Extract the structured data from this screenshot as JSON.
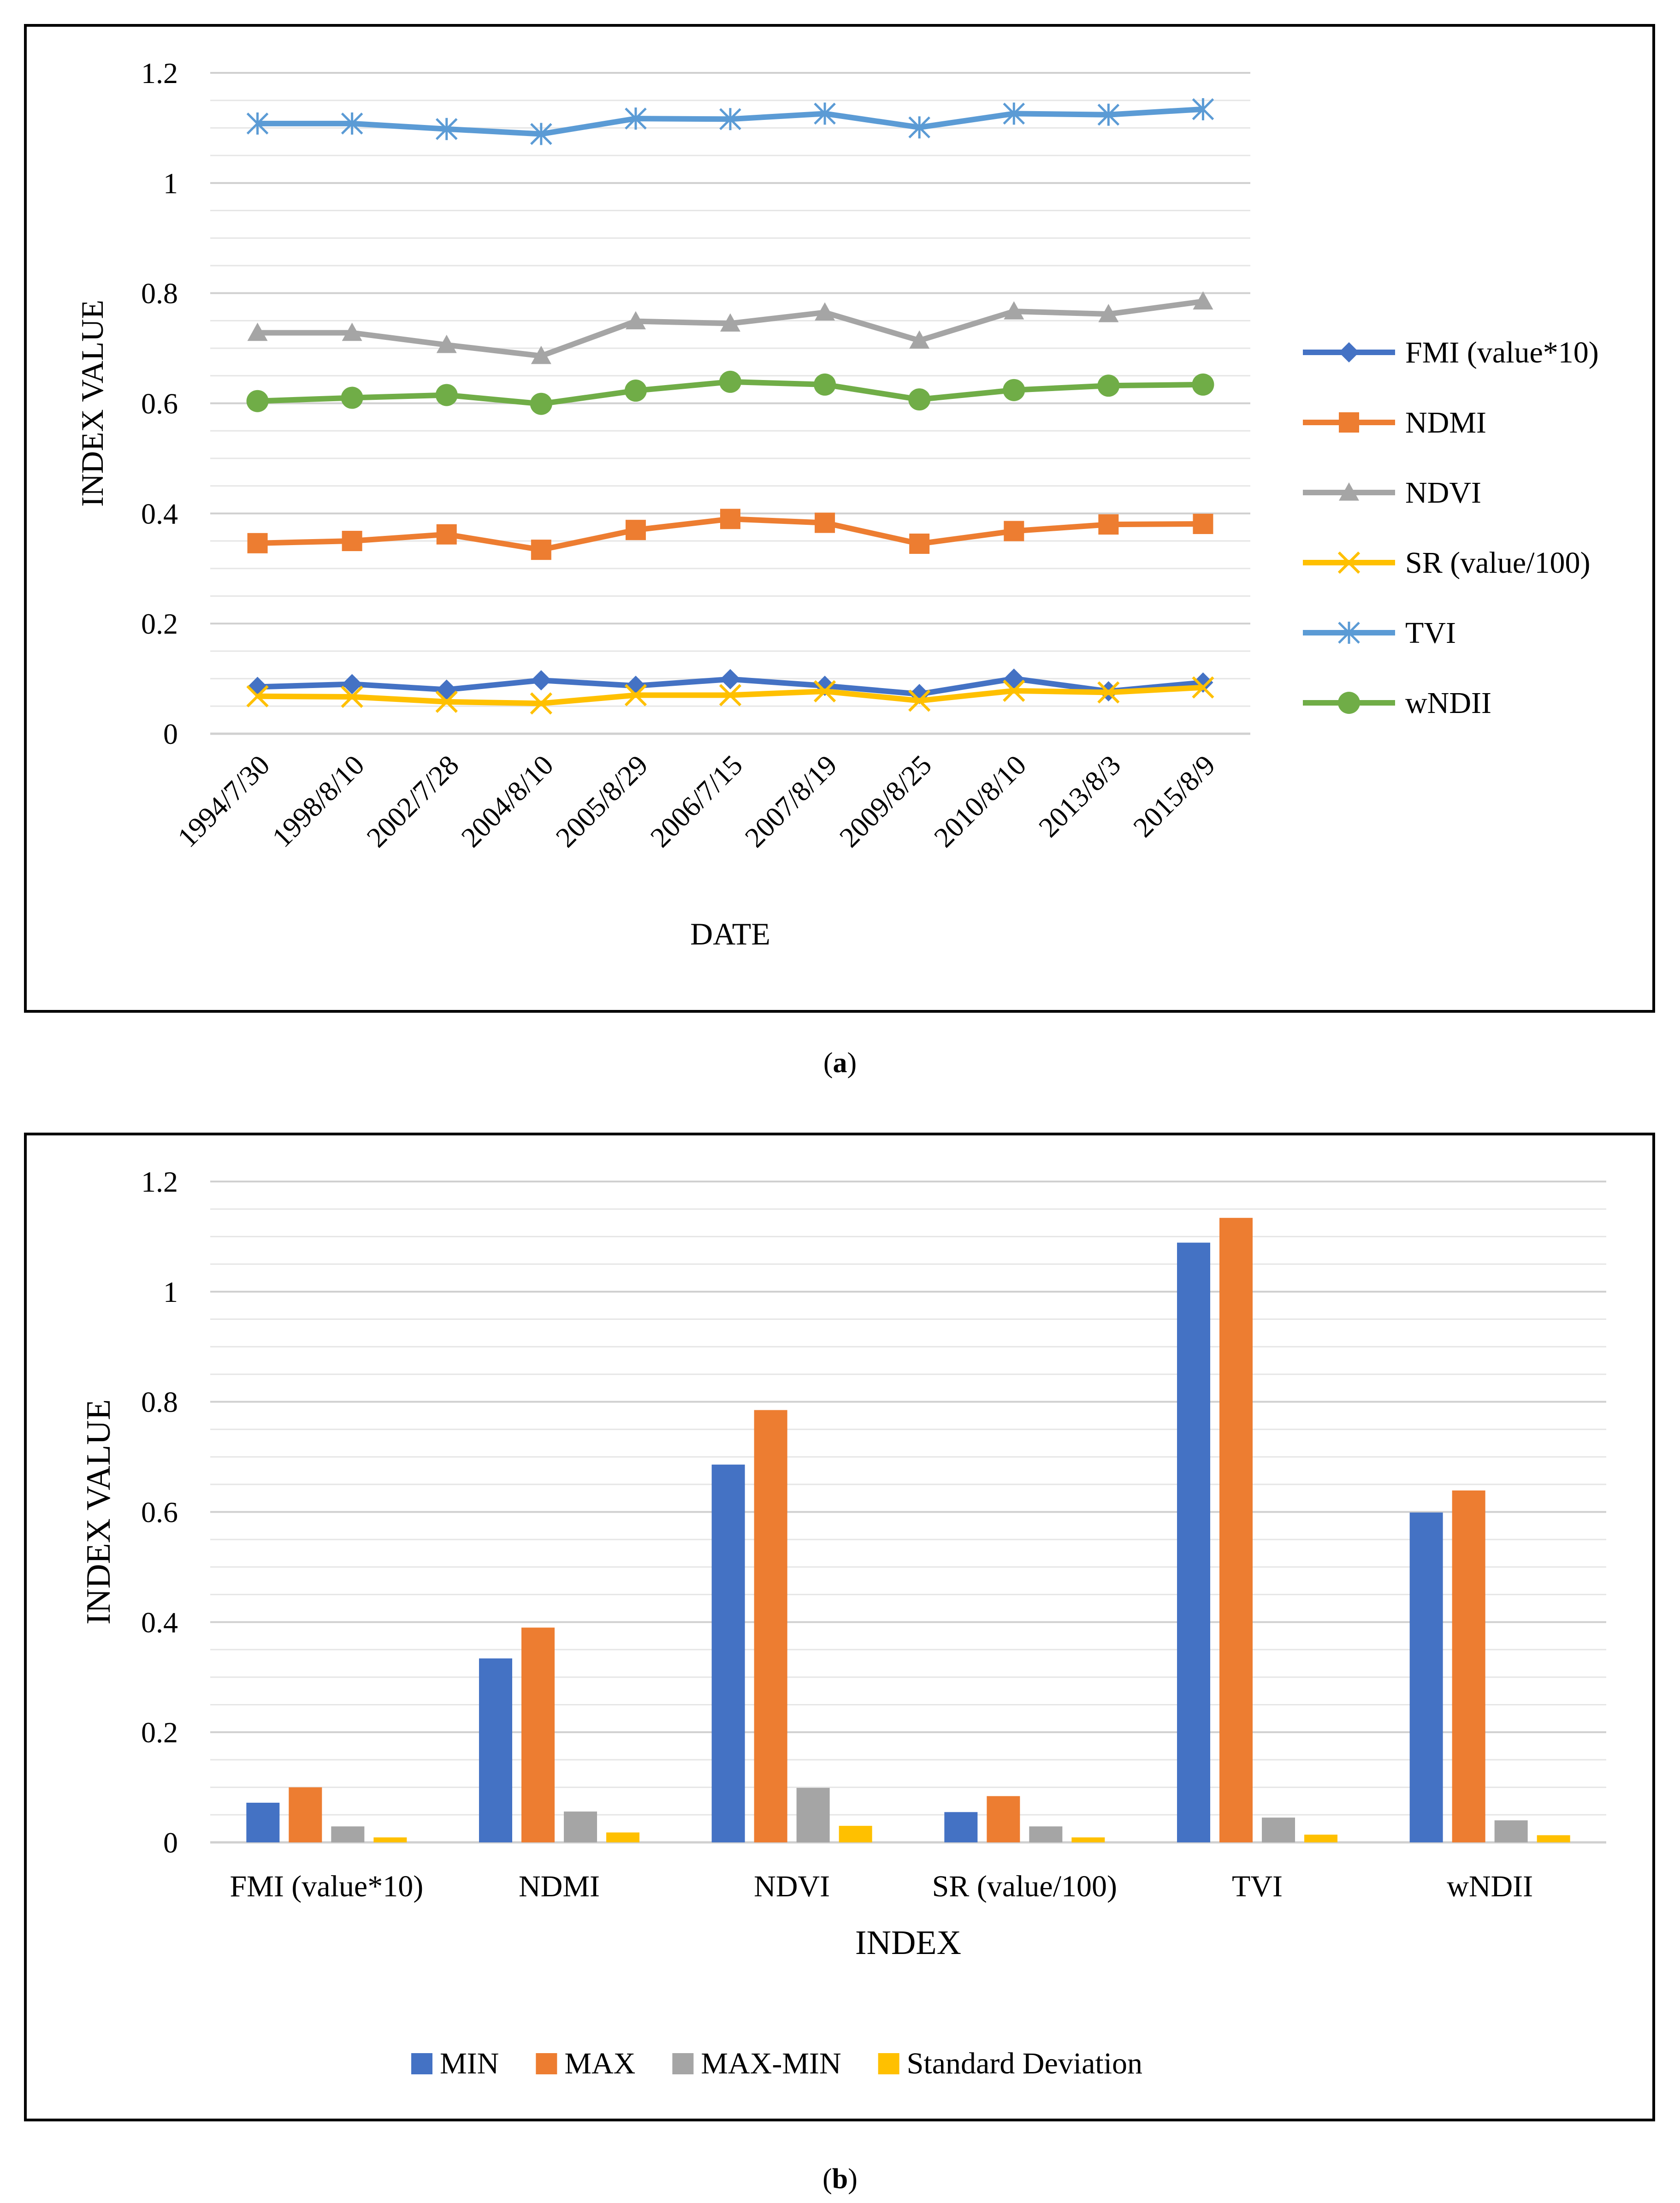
{
  "captions": {
    "a": "a",
    "b": "b"
  },
  "chart_data": [
    {
      "type": "line",
      "xlabel": "DATE",
      "ylabel": "INDEX VALUE",
      "ylim": [
        0,
        1.2
      ],
      "yticks": [
        "0",
        "0.2",
        "0.4",
        "0.6",
        "0.8",
        "1",
        "1.2"
      ],
      "grid": true,
      "legend": "right",
      "x": [
        "1994/7/30",
        "1998/8/10",
        "2002/7/28",
        "2004/8/10",
        "2005/8/29",
        "2006/7/15",
        "2007/8/19",
        "2009/8/25",
        "2010/8/10",
        "2013/8/3",
        "2015/8/9"
      ],
      "series": [
        {
          "name": "FMI (value*10)",
          "color": "#4472c4",
          "marker": "diamond",
          "values": [
            0.085,
            0.09,
            0.08,
            0.097,
            0.087,
            0.099,
            0.087,
            0.072,
            0.1,
            0.077,
            0.093
          ]
        },
        {
          "name": "NDMI",
          "color": "#ed7d31",
          "marker": "square",
          "values": [
            0.346,
            0.35,
            0.362,
            0.334,
            0.37,
            0.39,
            0.383,
            0.345,
            0.368,
            0.38,
            0.381
          ]
        },
        {
          "name": "NDVI",
          "color": "#a5a5a5",
          "marker": "triangle",
          "values": [
            0.728,
            0.728,
            0.706,
            0.686,
            0.749,
            0.745,
            0.765,
            0.714,
            0.767,
            0.762,
            0.785
          ]
        },
        {
          "name": "SR (value/100)",
          "color": "#ffc000",
          "marker": "x",
          "values": [
            0.068,
            0.067,
            0.058,
            0.055,
            0.07,
            0.07,
            0.077,
            0.06,
            0.078,
            0.075,
            0.084
          ]
        },
        {
          "name": "TVI",
          "color": "#5b9bd5",
          "marker": "asterisk",
          "values": [
            1.108,
            1.108,
            1.098,
            1.089,
            1.117,
            1.116,
            1.126,
            1.101,
            1.126,
            1.124,
            1.134
          ]
        },
        {
          "name": "wNDII",
          "color": "#70ad47",
          "marker": "circle",
          "values": [
            0.604,
            0.61,
            0.615,
            0.599,
            0.623,
            0.639,
            0.634,
            0.607,
            0.624,
            0.632,
            0.634
          ]
        }
      ]
    },
    {
      "type": "bar",
      "xlabel": "INDEX",
      "ylabel": "INDEX VALUE",
      "ylim": [
        0,
        1.2
      ],
      "yticks": [
        "0",
        "0.2",
        "0.4",
        "0.6",
        "0.8",
        "1",
        "1.2"
      ],
      "grid": true,
      "legend": "bottom",
      "categories": [
        "FMI (value*10)",
        "NDMI",
        "NDVI",
        "SR (value/100)",
        "TVI",
        "wNDII"
      ],
      "series": [
        {
          "name": "MIN",
          "color": "#4472c4",
          "values": [
            0.072,
            0.334,
            0.686,
            0.055,
            1.089,
            0.599
          ]
        },
        {
          "name": "MAX",
          "color": "#ed7d31",
          "values": [
            0.1,
            0.39,
            0.785,
            0.084,
            1.134,
            0.639
          ]
        },
        {
          "name": "MAX-MIN",
          "color": "#a5a5a5",
          "values": [
            0.029,
            0.056,
            0.099,
            0.029,
            0.045,
            0.04
          ]
        },
        {
          "name": "Standard Deviation",
          "color": "#ffc000",
          "values": [
            0.009,
            0.018,
            0.03,
            0.009,
            0.014,
            0.013
          ]
        }
      ]
    }
  ]
}
